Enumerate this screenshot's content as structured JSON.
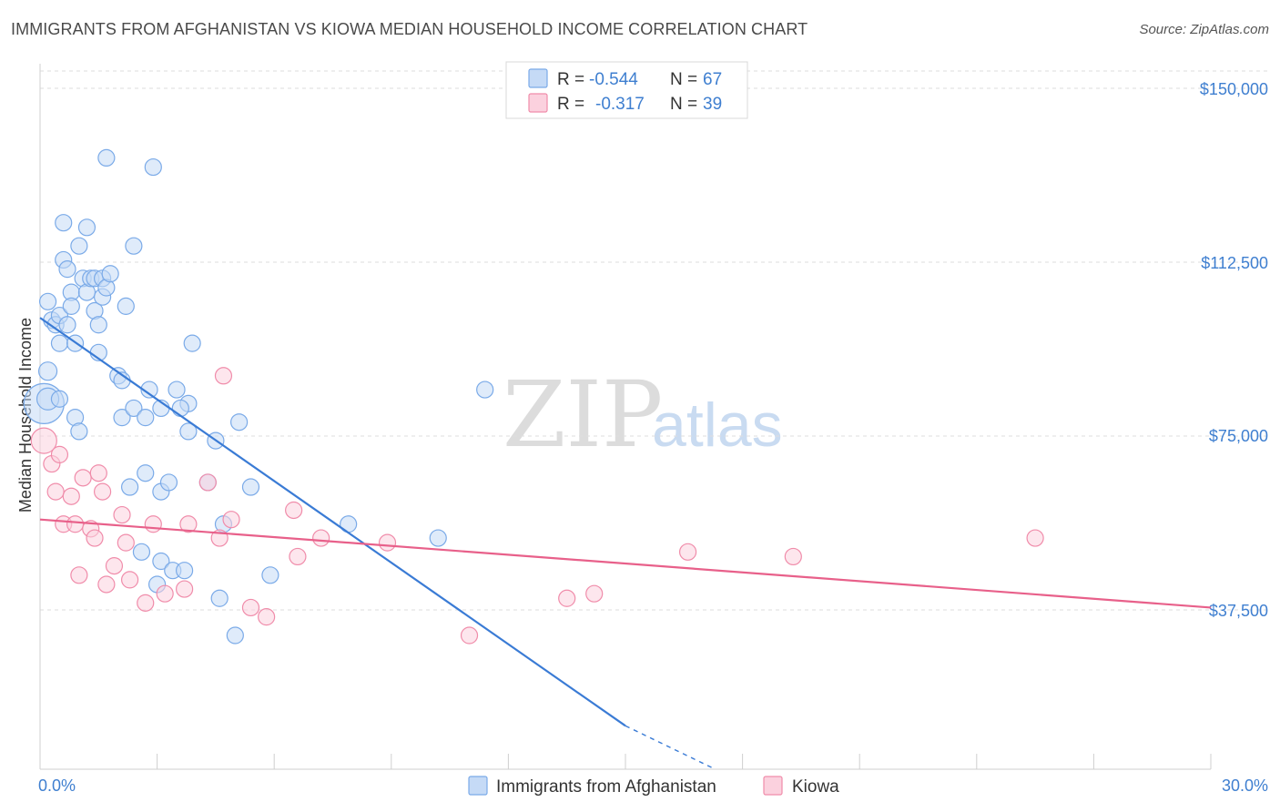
{
  "title": "IMMIGRANTS FROM AFGHANISTAN VS KIOWA MEDIAN HOUSEHOLD INCOME CORRELATION CHART",
  "source": "Source: ZipAtlas.com",
  "watermark": {
    "zip": "ZIP",
    "atlas": "atlas"
  },
  "legend": {
    "r_label": "R =",
    "n_label": "N =",
    "rows": [
      {
        "r": "-0.544",
        "n": "67",
        "color": "#7aaae8",
        "fill": "#c5daf6"
      },
      {
        "r": "-0.317",
        "n": "39",
        "color": "#f08caa",
        "fill": "#fbd1de"
      }
    ]
  },
  "chart_data": {
    "type": "scatter",
    "title": "IMMIGRANTS FROM AFGHANISTAN VS KIOWA MEDIAN HOUSEHOLD INCOME CORRELATION CHART",
    "xlabel": "",
    "ylabel": "Median Household Income",
    "xlim": [
      0,
      30
    ],
    "ylim": [
      0,
      155000
    ],
    "x_tick_labels": [
      "0.0%",
      "30.0%"
    ],
    "y_ticks": [
      {
        "value": 150000,
        "label": "$150,000"
      },
      {
        "value": 112500,
        "label": "$112,500"
      },
      {
        "value": 75000,
        "label": "$75,000"
      },
      {
        "value": 37500,
        "label": "$37,500"
      }
    ],
    "series": [
      {
        "name": "Immigrants from Afghanistan",
        "color": "#3a7bd5",
        "fill": "#c5daf6",
        "stroke": "#7aaae8",
        "points": [
          [
            0.1,
            82000,
            22
          ],
          [
            0.2,
            83000,
            12
          ],
          [
            0.2,
            89000,
            10
          ],
          [
            0.2,
            104000,
            9
          ],
          [
            0.3,
            100000,
            9
          ],
          [
            0.4,
            99000,
            9
          ],
          [
            0.5,
            101000,
            9
          ],
          [
            0.5,
            95000,
            9
          ],
          [
            0.6,
            113000,
            9
          ],
          [
            0.6,
            121000,
            9
          ],
          [
            0.7,
            111000,
            9
          ],
          [
            0.7,
            99000,
            9
          ],
          [
            0.8,
            106000,
            9
          ],
          [
            0.8,
            103000,
            9
          ],
          [
            0.9,
            95000,
            9
          ],
          [
            1.0,
            116000,
            9
          ],
          [
            1.1,
            109000,
            9
          ],
          [
            1.2,
            120000,
            9
          ],
          [
            1.2,
            106000,
            9
          ],
          [
            1.3,
            109000,
            9
          ],
          [
            1.4,
            109000,
            9
          ],
          [
            1.4,
            102000,
            9
          ],
          [
            1.5,
            99000,
            9
          ],
          [
            1.5,
            93000,
            9
          ],
          [
            1.6,
            105000,
            9
          ],
          [
            1.6,
            109000,
            9
          ],
          [
            1.7,
            107000,
            9
          ],
          [
            1.8,
            110000,
            9
          ],
          [
            1.7,
            135000,
            9
          ],
          [
            2.2,
            103000,
            9
          ],
          [
            2.4,
            116000,
            9
          ],
          [
            2.9,
            133000,
            9
          ],
          [
            2.0,
            88000,
            9
          ],
          [
            2.1,
            87000,
            9
          ],
          [
            2.1,
            79000,
            9
          ],
          [
            2.4,
            81000,
            9
          ],
          [
            2.7,
            79000,
            9
          ],
          [
            2.8,
            85000,
            9
          ],
          [
            3.1,
            81000,
            9
          ],
          [
            3.5,
            85000,
            9
          ],
          [
            3.8,
            82000,
            9
          ],
          [
            3.6,
            81000,
            9
          ],
          [
            3.8,
            76000,
            9
          ],
          [
            3.9,
            95000,
            9
          ],
          [
            4.5,
            74000,
            9
          ],
          [
            5.1,
            78000,
            9
          ],
          [
            0.9,
            79000,
            9
          ],
          [
            1.0,
            76000,
            9
          ],
          [
            0.5,
            83000,
            9
          ],
          [
            2.3,
            64000,
            9
          ],
          [
            2.7,
            67000,
            9
          ],
          [
            3.1,
            63000,
            9
          ],
          [
            3.3,
            65000,
            9
          ],
          [
            4.3,
            65000,
            9
          ],
          [
            5.4,
            64000,
            9
          ],
          [
            4.7,
            56000,
            9
          ],
          [
            2.6,
            50000,
            9
          ],
          [
            3.1,
            48000,
            9
          ],
          [
            3.4,
            46000,
            9
          ],
          [
            3.7,
            46000,
            9
          ],
          [
            5.9,
            45000,
            9
          ],
          [
            3.0,
            43000,
            9
          ],
          [
            4.6,
            40000,
            9
          ],
          [
            5.0,
            32000,
            9
          ],
          [
            7.9,
            56000,
            9
          ],
          [
            10.2,
            53000,
            9
          ],
          [
            11.4,
            85000,
            9
          ]
        ]
      },
      {
        "name": "Kiowa",
        "color": "#e8608a",
        "fill": "#fbd1de",
        "stroke": "#f08caa",
        "points": [
          [
            0.1,
            74000,
            14
          ],
          [
            0.3,
            69000,
            9
          ],
          [
            0.5,
            71000,
            9
          ],
          [
            0.4,
            63000,
            9
          ],
          [
            0.6,
            56000,
            9
          ],
          [
            0.8,
            62000,
            9
          ],
          [
            0.9,
            56000,
            9
          ],
          [
            1.1,
            66000,
            9
          ],
          [
            1.3,
            55000,
            9
          ],
          [
            1.4,
            53000,
            9
          ],
          [
            1.5,
            67000,
            9
          ],
          [
            1.6,
            63000,
            9
          ],
          [
            1.0,
            45000,
            9
          ],
          [
            1.7,
            43000,
            9
          ],
          [
            1.9,
            47000,
            9
          ],
          [
            2.1,
            58000,
            9
          ],
          [
            2.2,
            52000,
            9
          ],
          [
            2.3,
            44000,
            9
          ],
          [
            2.7,
            39000,
            9
          ],
          [
            2.9,
            56000,
            9
          ],
          [
            3.2,
            41000,
            9
          ],
          [
            3.7,
            42000,
            9
          ],
          [
            3.8,
            56000,
            9
          ],
          [
            4.3,
            65000,
            9
          ],
          [
            4.6,
            53000,
            9
          ],
          [
            4.9,
            57000,
            9
          ],
          [
            4.7,
            88000,
            9
          ],
          [
            5.4,
            38000,
            9
          ],
          [
            5.8,
            36000,
            9
          ],
          [
            6.5,
            59000,
            9
          ],
          [
            6.6,
            49000,
            9
          ],
          [
            7.2,
            53000,
            9
          ],
          [
            8.9,
            52000,
            9
          ],
          [
            11.0,
            32000,
            9
          ],
          [
            13.5,
            40000,
            9
          ],
          [
            14.2,
            41000,
            9
          ],
          [
            16.6,
            50000,
            9
          ],
          [
            19.3,
            49000,
            9
          ],
          [
            25.5,
            53000,
            9
          ]
        ]
      }
    ],
    "trend_lines": [
      {
        "series": "Immigrants from Afghanistan",
        "x": [
          0.0,
          15.0
        ],
        "y": [
          100500,
          12500
        ],
        "dashed_to": [
          17.3,
          -1000
        ]
      },
      {
        "series": "Kiowa",
        "x": [
          0.0,
          30.0
        ],
        "y": [
          57000,
          38000
        ]
      }
    ]
  }
}
